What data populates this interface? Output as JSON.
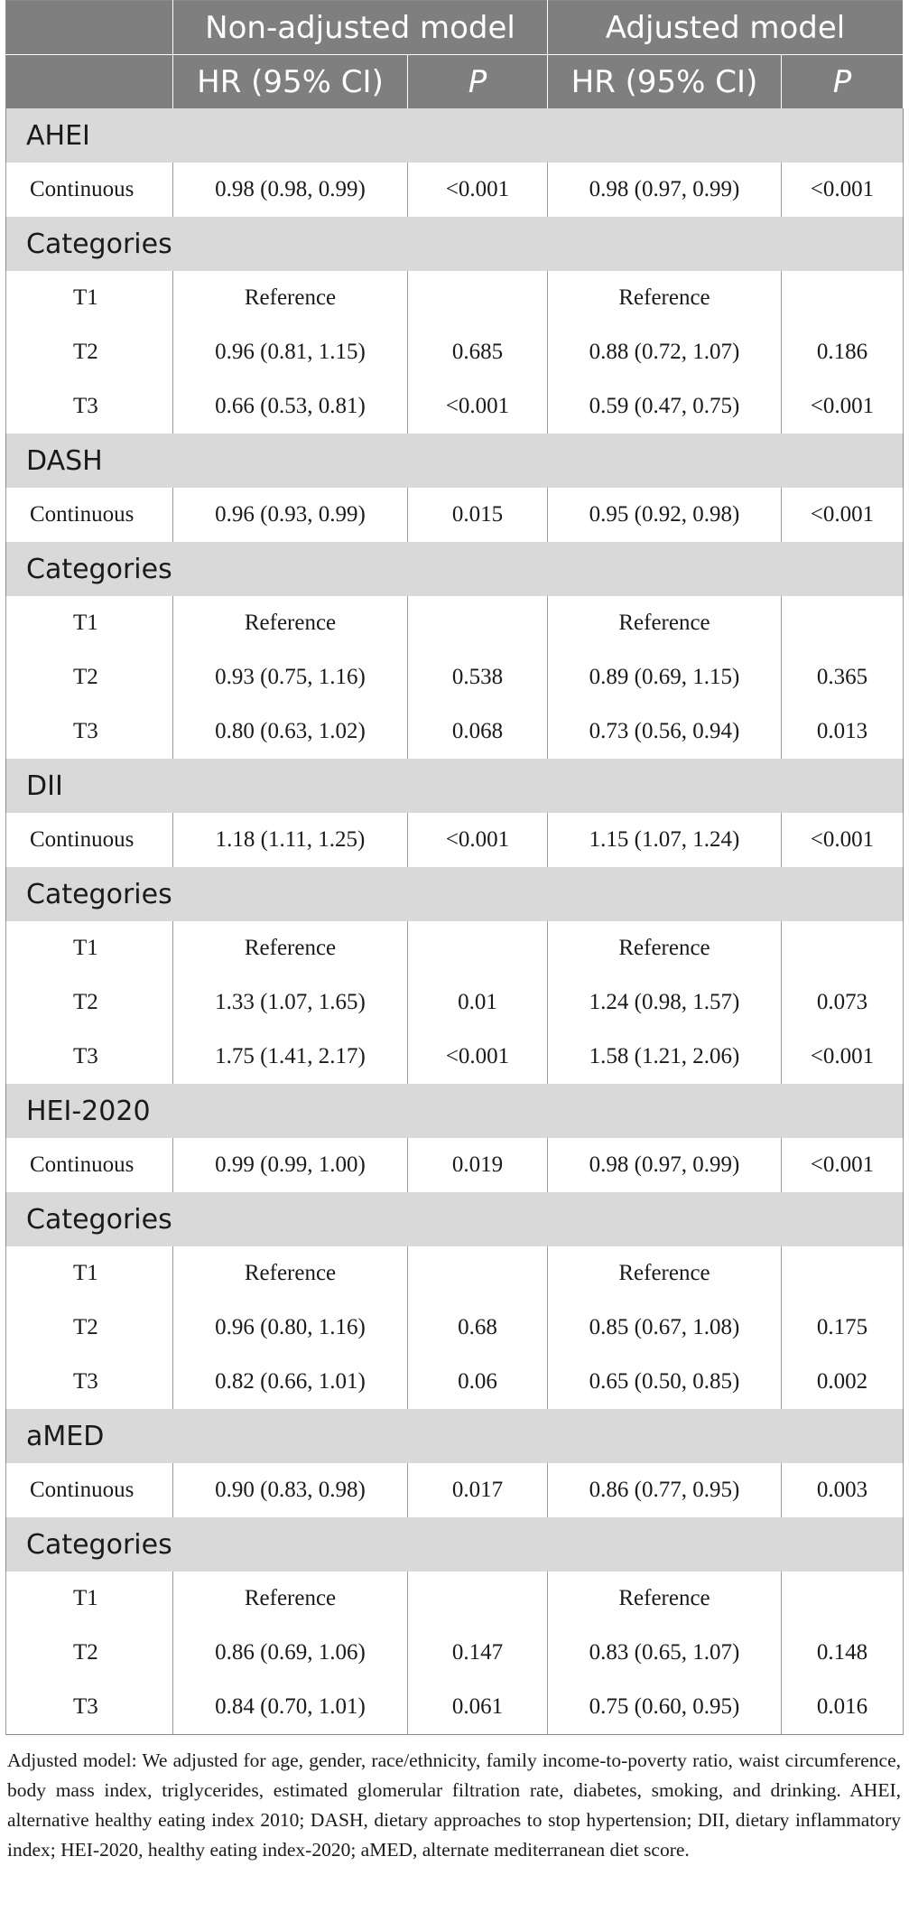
{
  "header": {
    "group1": "Non-adjusted model",
    "group2": "Adjusted model",
    "hr_label": "HR (95% CI)",
    "p_label": "P"
  },
  "sections": [
    {
      "name": "AHEI",
      "continuous": {
        "label": "Continuous",
        "hr1": "0.98 (0.98, 0.99)",
        "p1": "<0.001",
        "hr2": "0.98 (0.97, 0.99)",
        "p2": "<0.001"
      },
      "categories_label": "Categories",
      "tiers": [
        {
          "label": "T1",
          "hr1": "Reference",
          "p1": "",
          "hr2": "Reference",
          "p2": ""
        },
        {
          "label": "T2",
          "hr1": "0.96 (0.81, 1.15)",
          "p1": "0.685",
          "hr2": "0.88 (0.72, 1.07)",
          "p2": "0.186"
        },
        {
          "label": "T3",
          "hr1": "0.66 (0.53, 0.81)",
          "p1": "<0.001",
          "hr2": "0.59 (0.47, 0.75)",
          "p2": "<0.001"
        }
      ]
    },
    {
      "name": "DASH",
      "continuous": {
        "label": "Continuous",
        "hr1": "0.96 (0.93, 0.99)",
        "p1": "0.015",
        "hr2": "0.95 (0.92, 0.98)",
        "p2": "<0.001"
      },
      "categories_label": "Categories",
      "tiers": [
        {
          "label": "T1",
          "hr1": "Reference",
          "p1": "",
          "hr2": "Reference",
          "p2": ""
        },
        {
          "label": "T2",
          "hr1": "0.93 (0.75, 1.16)",
          "p1": "0.538",
          "hr2": "0.89 (0.69, 1.15)",
          "p2": "0.365"
        },
        {
          "label": "T3",
          "hr1": "0.80 (0.63, 1.02)",
          "p1": "0.068",
          "hr2": "0.73 (0.56, 0.94)",
          "p2": "0.013"
        }
      ]
    },
    {
      "name": "DII",
      "continuous": {
        "label": "Continuous",
        "hr1": "1.18 (1.11, 1.25)",
        "p1": "<0.001",
        "hr2": "1.15 (1.07, 1.24)",
        "p2": "<0.001"
      },
      "categories_label": "Categories",
      "tiers": [
        {
          "label": "T1",
          "hr1": "Reference",
          "p1": "",
          "hr2": "Reference",
          "p2": ""
        },
        {
          "label": "T2",
          "hr1": "1.33 (1.07, 1.65)",
          "p1": "0.01",
          "hr2": "1.24 (0.98, 1.57)",
          "p2": "0.073"
        },
        {
          "label": "T3",
          "hr1": "1.75 (1.41, 2.17)",
          "p1": "<0.001",
          "hr2": "1.58 (1.21, 2.06)",
          "p2": "<0.001"
        }
      ]
    },
    {
      "name": "HEI-2020",
      "continuous": {
        "label": "Continuous",
        "hr1": "0.99 (0.99, 1.00)",
        "p1": "0.019",
        "hr2": "0.98 (0.97, 0.99)",
        "p2": "<0.001"
      },
      "categories_label": "Categories",
      "tiers": [
        {
          "label": "T1",
          "hr1": "Reference",
          "p1": "",
          "hr2": "Reference",
          "p2": ""
        },
        {
          "label": "T2",
          "hr1": "0.96 (0.80, 1.16)",
          "p1": "0.68",
          "hr2": "0.85 (0.67, 1.08)",
          "p2": "0.175"
        },
        {
          "label": "T3",
          "hr1": "0.82 (0.66, 1.01)",
          "p1": "0.06",
          "hr2": "0.65 (0.50, 0.85)",
          "p2": "0.002"
        }
      ]
    },
    {
      "name": "aMED",
      "continuous": {
        "label": "Continuous",
        "hr1": "0.90 (0.83, 0.98)",
        "p1": "0.017",
        "hr2": "0.86 (0.77, 0.95)",
        "p2": "0.003"
      },
      "categories_label": "Categories",
      "tiers": [
        {
          "label": "T1",
          "hr1": "Reference",
          "p1": "",
          "hr2": "Reference",
          "p2": ""
        },
        {
          "label": "T2",
          "hr1": "0.86 (0.69, 1.06)",
          "p1": "0.147",
          "hr2": "0.83 (0.65, 1.07)",
          "p2": "0.148"
        },
        {
          "label": "T3",
          "hr1": "0.84 (0.70, 1.01)",
          "p1": "0.061",
          "hr2": "0.75 (0.60, 0.95)",
          "p2": "0.016"
        }
      ]
    }
  ],
  "footnote": "Adjusted model: We adjusted for age, gender, race/ethnicity, family income-to-poverty ratio, waist circumference, body mass index, triglycerides, estimated glomerular filtration rate, diabetes, smoking, and drinking. AHEI, alternative healthy eating index 2010; DASH, dietary approaches to stop hypertension; DII, dietary inflammatory index; HEI-2020, healthy eating index-2020; aMED, alternate mediterranean diet score."
}
